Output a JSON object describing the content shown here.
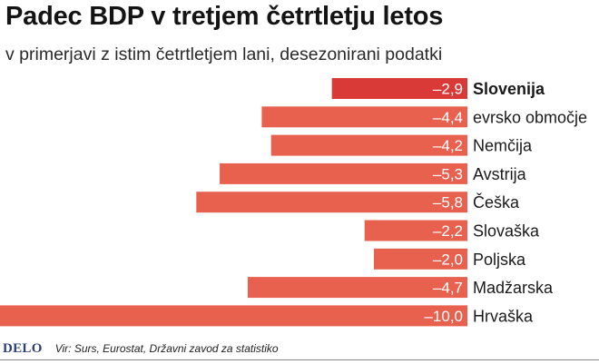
{
  "title": "Padec BDP v tretjem četrtletju letos",
  "subtitle": "v primerjavi z istim četrtletjem lani, desezonirani podatki",
  "source": "Vir: Surs, Eurostat, Državni zavod za statistiko",
  "logo": "DELO",
  "colors": {
    "highlight": "#d93a37",
    "bar": "#e8614f",
    "text": "#1a1a1a"
  },
  "chart_data": {
    "type": "bar",
    "orientation": "horizontal",
    "title": "Padec BDP v tretjem četrtletju letos",
    "subtitle": "v primerjavi z istim četrtletjem lani, desezonirani podatki",
    "xlim": [
      -10,
      0
    ],
    "grid": false,
    "legend": "none",
    "categories": [
      "Slovenija",
      "evrsko območje",
      "Nemčija",
      "Avstrija",
      "Češka",
      "Slovaška",
      "Poljska",
      "Madžarska",
      "Hrvaška"
    ],
    "values": [
      -2.9,
      -4.4,
      -4.2,
      -5.3,
      -5.8,
      -2.2,
      -2.0,
      -4.7,
      -10.0
    ],
    "value_labels": [
      "–2,9",
      "–4,4",
      "–4,2",
      "–5,3",
      "–5,8",
      "–2,2",
      "–2,0",
      "–4,7",
      "–10,0"
    ],
    "highlighted": [
      "Slovenija"
    ]
  }
}
